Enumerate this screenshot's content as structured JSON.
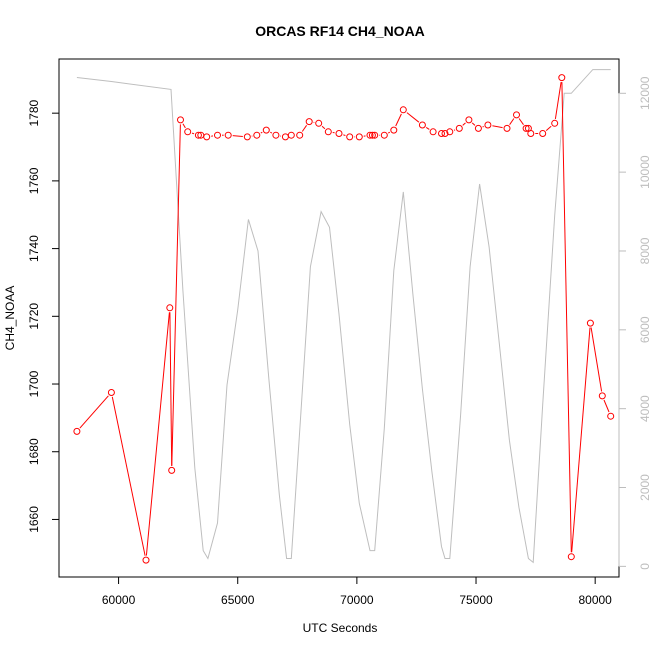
{
  "chart_data": {
    "type": "line",
    "title": "ORCAS RF14 CH4_NOAA",
    "xlabel": "UTC Seconds",
    "ylabel": "CH4_NOAA",
    "xlim": [
      57500,
      81000
    ],
    "ylim": [
      1643,
      1796
    ],
    "y2lim": [
      -270,
      12870
    ],
    "x_ticks": [
      60000,
      65000,
      70000,
      75000,
      80000
    ],
    "x_tick_labels": [
      "60000",
      "65000",
      "70000",
      "75000",
      "80000"
    ],
    "y_ticks": [
      1660,
      1680,
      1700,
      1720,
      1740,
      1760,
      1780
    ],
    "y_tick_labels": [
      "1660",
      "1680",
      "1700",
      "1720",
      "1740",
      "1760",
      "1780"
    ],
    "y2_ticks": [
      0,
      2000,
      4000,
      6000,
      8000,
      10000,
      12000
    ],
    "y2_tick_labels": [
      "0",
      "2000",
      "4000",
      "6000",
      "8000",
      "10000",
      "12000"
    ],
    "colors": {
      "ch4": "#ff0000",
      "secondary": "#bebebe",
      "axis": "#000000",
      "axis2": "#bdbdbd"
    },
    "series": [
      {
        "name": "CH4_NOAA",
        "axis": "left",
        "style": "line+points",
        "x": [
          58250,
          59700,
          61150,
          62150,
          62230,
          62600,
          62900,
          63350,
          63450,
          63700,
          64150,
          64600,
          65400,
          65800,
          66200,
          66600,
          67000,
          67250,
          67600,
          68000,
          68400,
          68800,
          69250,
          69700,
          70100,
          70550,
          70650,
          70750,
          71150,
          71550,
          71950,
          72750,
          73200,
          73550,
          73700,
          73900,
          74300,
          74700,
          75100,
          75500,
          76300,
          76700,
          77100,
          77200,
          77300,
          77800,
          78300,
          78600,
          79000,
          79800,
          80300,
          80650
        ],
        "values": [
          1686,
          1697.5,
          1648,
          1722.5,
          1674.5,
          1778,
          1774.5,
          1773.5,
          1773.5,
          1773,
          1773.5,
          1773.5,
          1773,
          1773.5,
          1775,
          1773.5,
          1773,
          1773.5,
          1773.5,
          1777.5,
          1777,
          1774.5,
          1774,
          1773,
          1773,
          1773.5,
          1773.5,
          1773.5,
          1773.5,
          1775,
          1781,
          1776.5,
          1774.5,
          1774,
          1774,
          1774.5,
          1775.5,
          1778,
          1775.5,
          1776.5,
          1775.5,
          1779.5,
          1775.5,
          1775.5,
          1774,
          1774,
          1777,
          1790.5,
          1649,
          1718,
          1696.5,
          1690.5
        ]
      },
      {
        "name": "secondary",
        "axis": "right",
        "style": "line",
        "x": [
          58250,
          59700,
          62200,
          62700,
          63200,
          63550,
          63750,
          64150,
          64550,
          65000,
          65450,
          65850,
          66300,
          66750,
          67050,
          67250,
          67650,
          68050,
          68500,
          68850,
          69250,
          69700,
          70100,
          70550,
          70750,
          71150,
          71550,
          71950,
          72350,
          72750,
          73150,
          73550,
          73700,
          73900,
          74350,
          74750,
          75150,
          75550,
          75950,
          76400,
          76800,
          77200,
          77400,
          77800,
          78300,
          78700,
          79000,
          79900,
          80650
        ],
        "values": [
          12400,
          12300,
          12100,
          7000,
          2500,
          400,
          200,
          1100,
          4600,
          6500,
          8800,
          8000,
          4800,
          1800,
          200,
          200,
          3900,
          7600,
          9000,
          8600,
          6400,
          3600,
          1600,
          400,
          400,
          3500,
          7500,
          9500,
          6900,
          4500,
          2400,
          500,
          200,
          200,
          3800,
          7600,
          9700,
          8100,
          5800,
          3200,
          1500,
          200,
          100,
          4100,
          8900,
          12000,
          12000,
          12600,
          12600
        ]
      }
    ]
  }
}
